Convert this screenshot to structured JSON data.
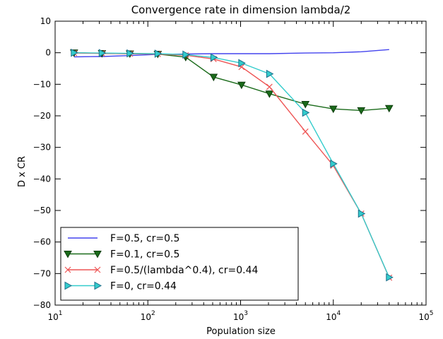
{
  "chart_data": {
    "type": "line",
    "title": "Convergence rate in dimension lambda/2",
    "xlabel": "Population size",
    "ylabel": "D x CR",
    "xscale": "log",
    "xlim": [
      10,
      100000
    ],
    "ylim": [
      -80,
      10
    ],
    "xtick_labels": [
      {
        "base": "10",
        "exp": "1"
      },
      {
        "base": "10",
        "exp": "2"
      },
      {
        "base": "10",
        "exp": "3"
      },
      {
        "base": "10",
        "exp": "4"
      },
      {
        "base": "10",
        "exp": "5"
      }
    ],
    "ytick_labels": [
      "10",
      "0",
      "−10",
      "−20",
      "−30",
      "−40",
      "−50",
      "−60",
      "−70",
      "−80"
    ],
    "grid": false,
    "legend_position": "lower-left",
    "series": [
      {
        "name": "F=0.5, cr=0.5",
        "color": "#4444ee",
        "marker": "none",
        "x": [
          16,
          32,
          64,
          128,
          256,
          512,
          1024,
          2048,
          5000,
          10000,
          20000,
          40000
        ],
        "y": [
          -1.3,
          -1.2,
          -0.9,
          -0.5,
          -0.4,
          -0.3,
          -0.3,
          -0.3,
          -0.1,
          0.0,
          0.3,
          1.0
        ]
      },
      {
        "name": "F=0.1, cr=0.5",
        "color": "#1a6b1a",
        "marker": "triangle-down",
        "x": [
          16,
          32,
          64,
          128,
          256,
          512,
          1024,
          2048,
          5000,
          10000,
          20000,
          40000
        ],
        "y": [
          0.0,
          -0.2,
          -0.3,
          -0.4,
          -1.4,
          -7.7,
          -10.2,
          -13.0,
          -16.3,
          -17.8,
          -18.3,
          -17.6
        ]
      },
      {
        "name": "F=0.5/(lambda^0.4), cr=0.44",
        "color": "#ee5555",
        "marker": "x",
        "x": [
          16,
          32,
          64,
          128,
          256,
          512,
          1024,
          2048,
          5000,
          10000,
          20000,
          40000
        ],
        "y": [
          -0.1,
          -0.2,
          -0.3,
          -0.4,
          -0.8,
          -2.0,
          -4.5,
          -10.8,
          -25.0,
          -35.8,
          -51.0,
          -71.3
        ]
      },
      {
        "name": "F=0, cr=0.44",
        "color": "#33cccc",
        "marker": "triangle-right",
        "x": [
          16,
          32,
          64,
          128,
          256,
          512,
          1024,
          2048,
          5000,
          10000,
          20000,
          40000
        ],
        "y": [
          0.0,
          -0.1,
          -0.2,
          -0.3,
          -0.6,
          -1.5,
          -3.3,
          -6.7,
          -19.0,
          -35.2,
          -51.0,
          -71.2
        ]
      }
    ]
  }
}
